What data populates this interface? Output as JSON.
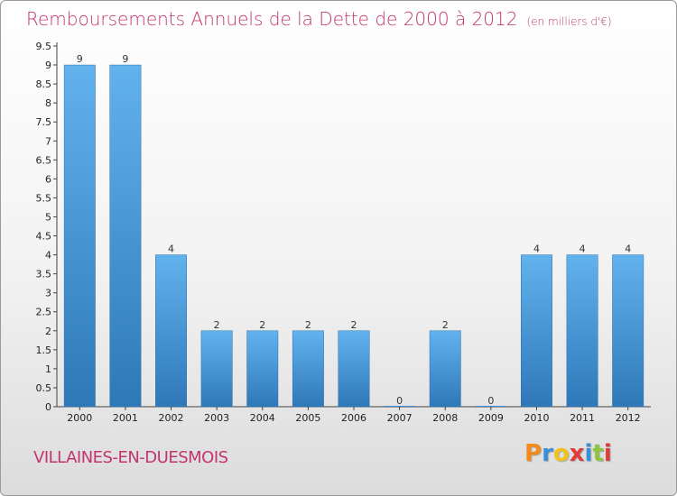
{
  "header": {
    "title": "Remboursements Annuels de la Dette de 2000 à 2012",
    "subtitle": "(en milliers d'€)"
  },
  "commune": "VILLAINES-EN-DUESMOIS",
  "logo": {
    "letters": [
      "P",
      "r",
      "o",
      "x",
      "i",
      "t",
      "i"
    ],
    "colors": [
      "#f28a1c",
      "#3a8fd6",
      "#f2c21c",
      "#e03a3a",
      "#3a8fd6",
      "#8cc63f",
      "#e03a3a"
    ]
  },
  "chart_data": {
    "type": "bar",
    "categories": [
      "2000",
      "2001",
      "2002",
      "2003",
      "2004",
      "2005",
      "2006",
      "2007",
      "2008",
      "2009",
      "2010",
      "2011",
      "2012"
    ],
    "values": [
      9,
      9,
      4,
      2,
      2,
      2,
      2,
      0,
      2,
      0,
      4,
      4,
      4
    ],
    "data_labels": [
      "9",
      "9",
      "4",
      "2",
      "2",
      "2",
      "2",
      "0",
      "2",
      "0",
      "4",
      "4",
      "4"
    ],
    "ylim": [
      0,
      9.5
    ],
    "yticks": [
      0,
      0.5,
      1,
      1.5,
      2,
      2.5,
      3,
      3.5,
      4,
      4.5,
      5,
      5.5,
      6,
      6.5,
      7,
      7.5,
      8,
      8.5,
      9,
      9.5
    ],
    "ytick_labels": [
      "0",
      "0.5",
      "1",
      "1.5",
      "2",
      "2.5",
      "3",
      "3.5",
      "4",
      "4.5",
      "5",
      "5.5",
      "6",
      "6.5",
      "7",
      "7.5",
      "8",
      "8.5",
      "9",
      "9.5"
    ],
    "bar_color": "#3d8fd6",
    "grid": false
  }
}
